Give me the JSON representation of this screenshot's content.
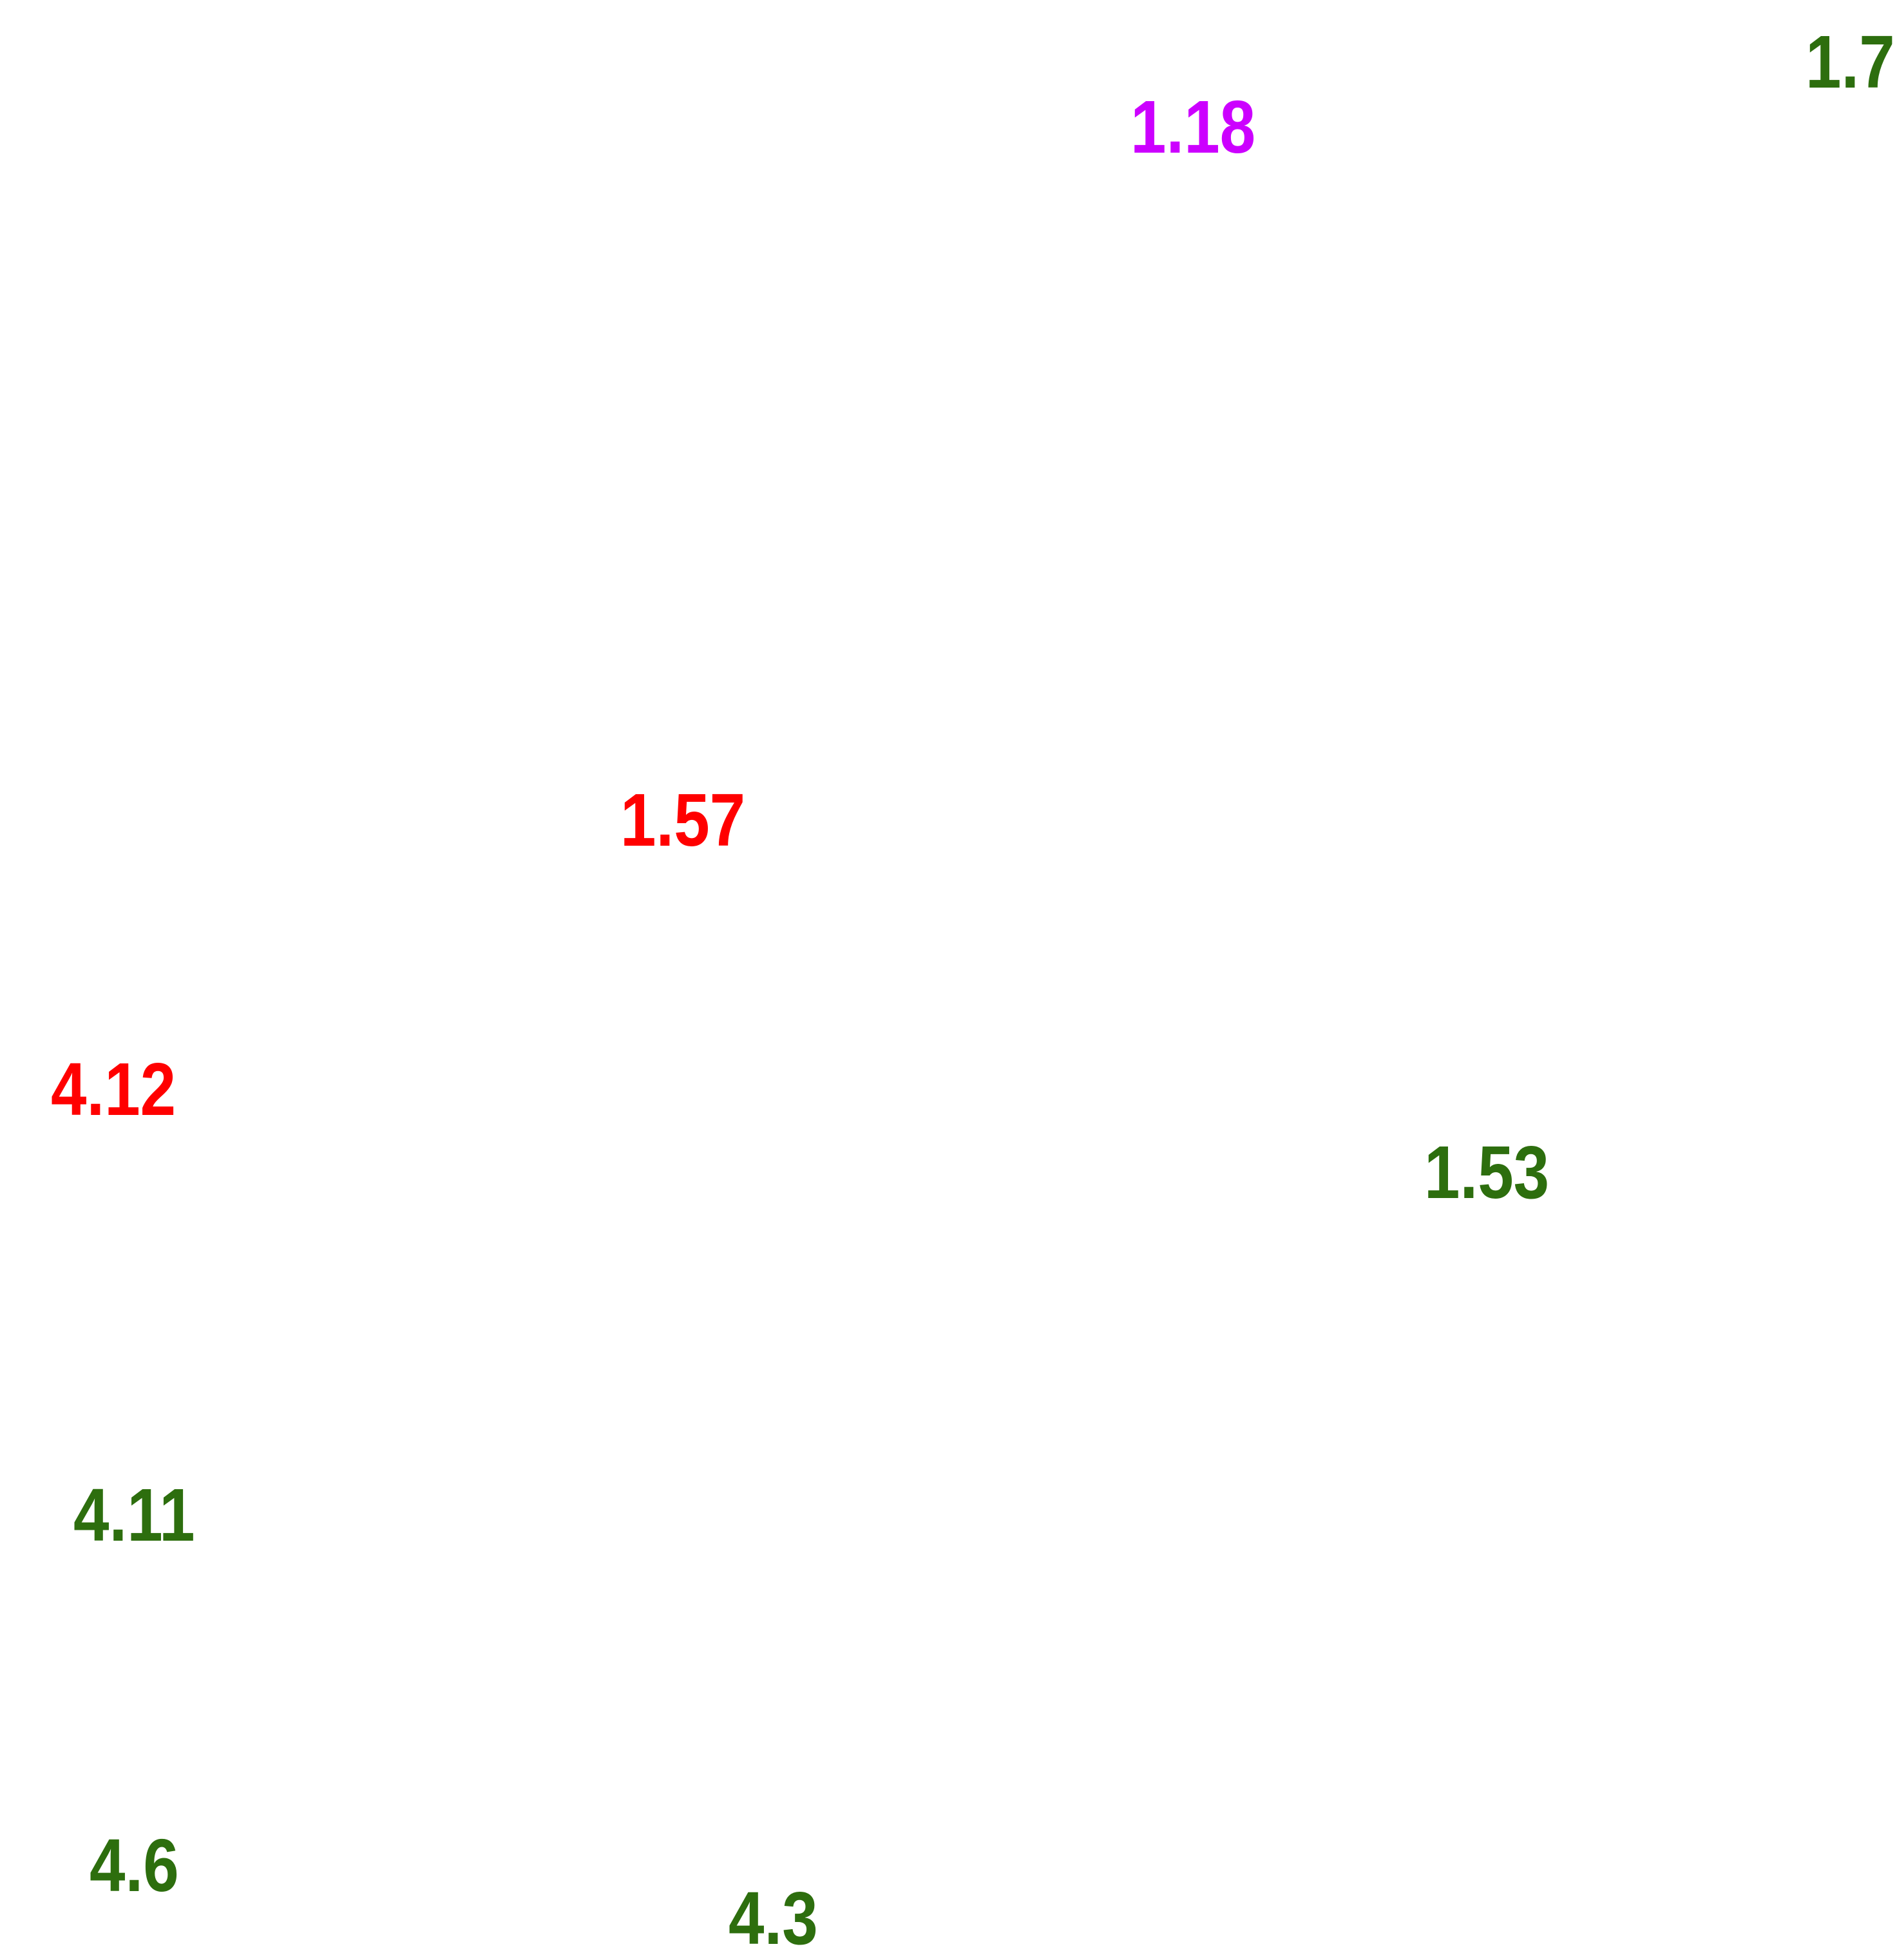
{
  "labels": [
    {
      "text": "1.7",
      "color": "#2d6e0e"
    },
    {
      "text": "1.18",
      "color": "#cc00ff"
    },
    {
      "text": "1.57",
      "color": "#ff0000"
    },
    {
      "text": "4.12",
      "color": "#ff0000"
    },
    {
      "text": "1.53",
      "color": "#2d6e0e"
    },
    {
      "text": "4.11",
      "color": "#2d6e0e"
    },
    {
      "text": "4.6",
      "color": "#2d6e0e"
    },
    {
      "text": "4.3",
      "color": "#2d6e0e"
    }
  ]
}
